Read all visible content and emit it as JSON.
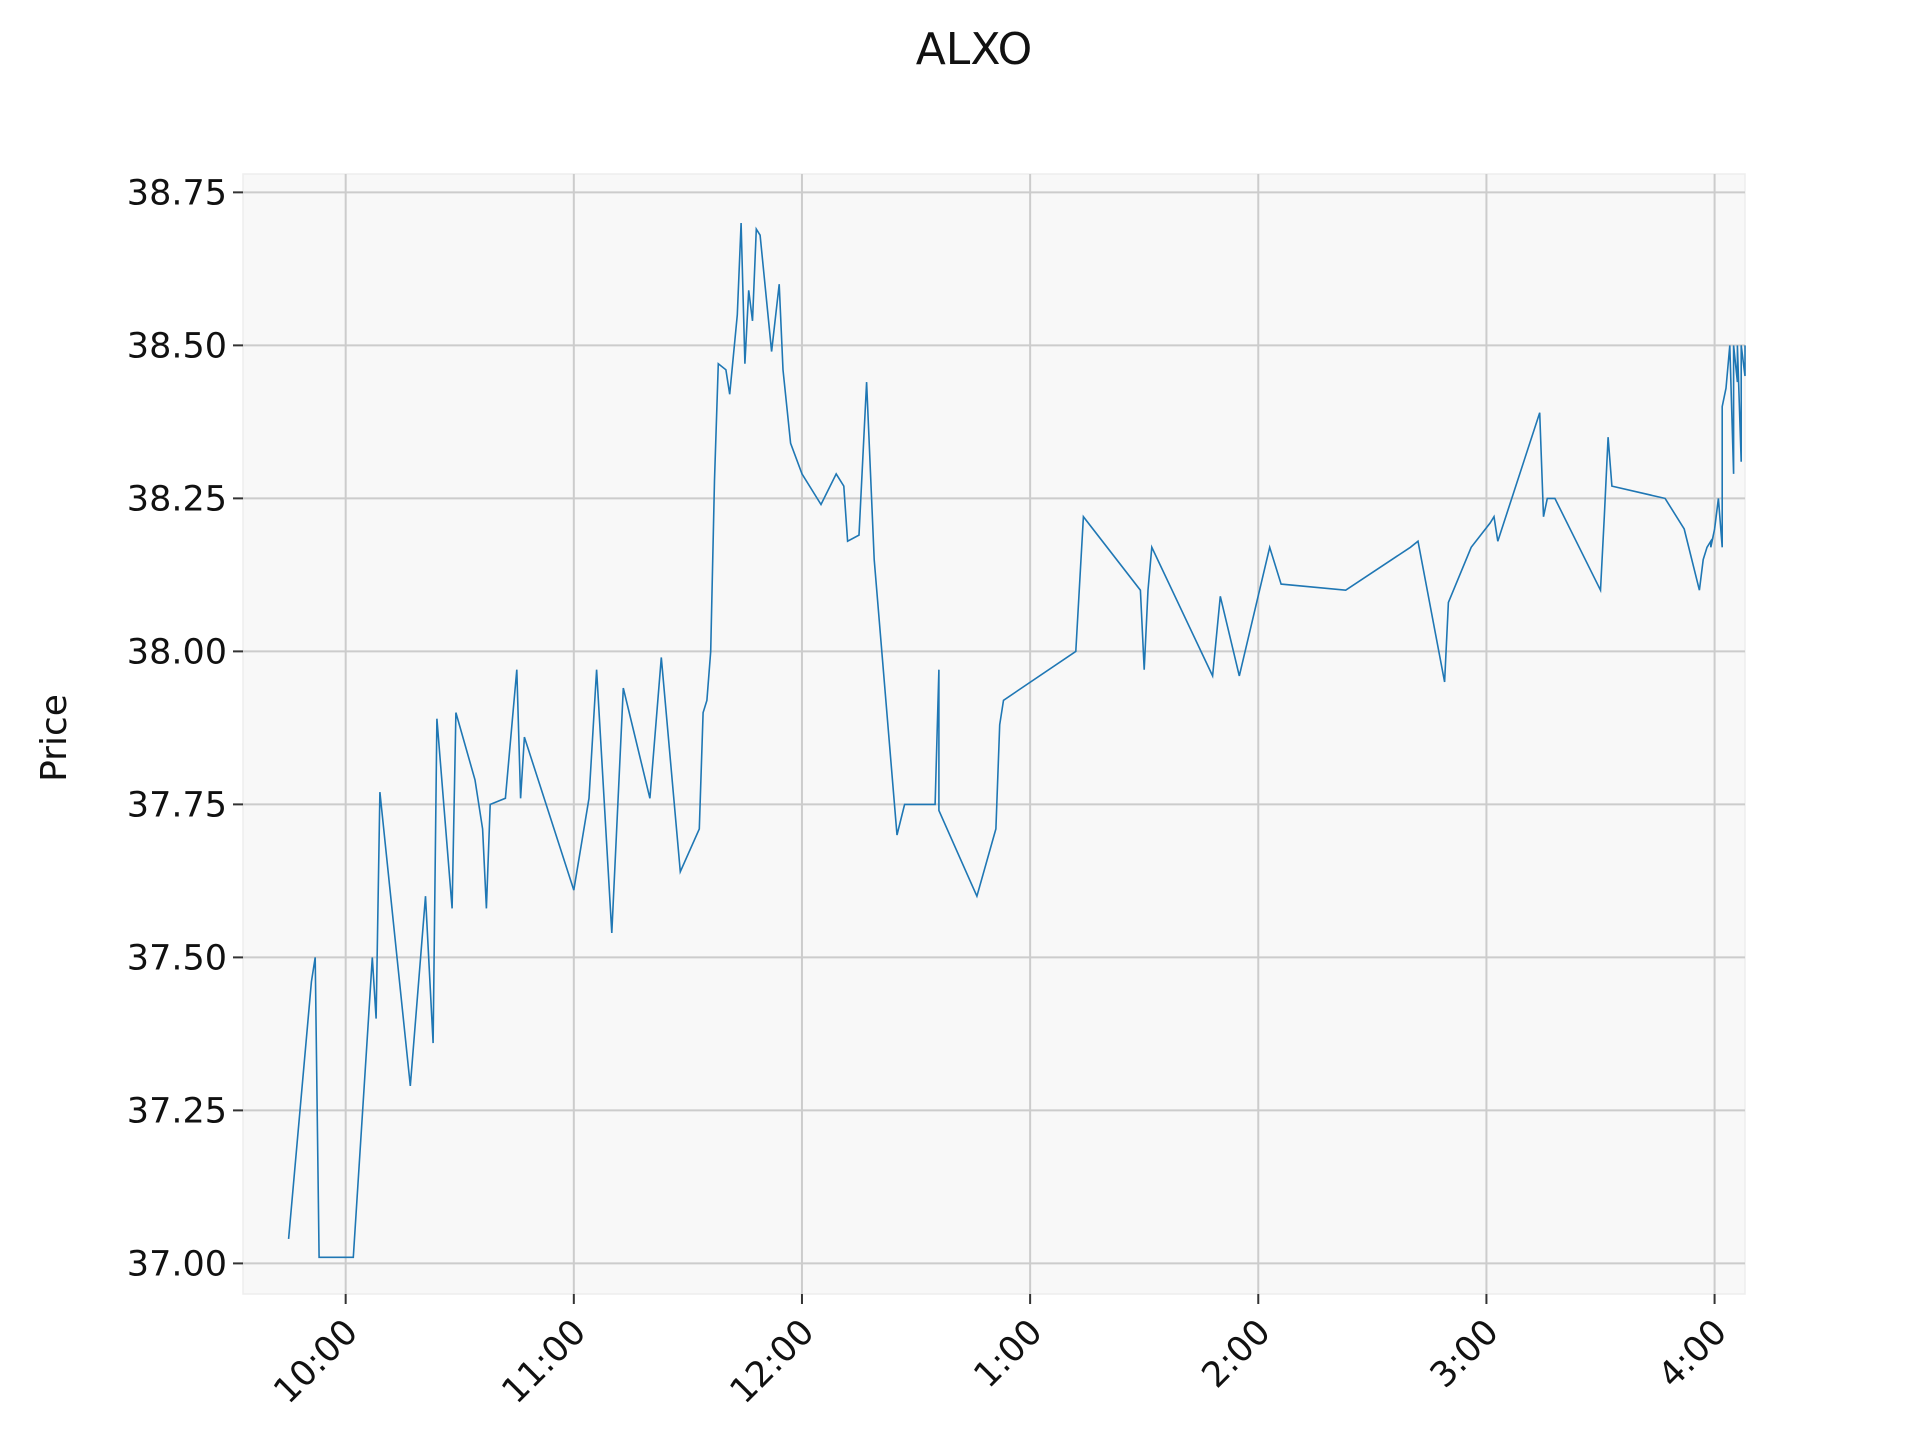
{
  "chart_data": {
    "type": "line",
    "title": "ALXO",
    "ylabel": "Price",
    "xlabel": "",
    "ylim": [
      36.95,
      38.78
    ],
    "xlim": [
      "09:33",
      "16:08"
    ],
    "grid": true,
    "legend": "none",
    "colors": {
      "line": "#1f77b4",
      "plot_background": "#f8f8f8",
      "grid": "#cccccc"
    },
    "y_ticks": [
      {
        "value": 37.0,
        "label": "37.00"
      },
      {
        "value": 37.25,
        "label": "37.25"
      },
      {
        "value": 37.5,
        "label": "37.50"
      },
      {
        "value": 37.75,
        "label": "37.75"
      },
      {
        "value": 38.0,
        "label": "38.00"
      },
      {
        "value": 38.25,
        "label": "38.25"
      },
      {
        "value": 38.5,
        "label": "38.50"
      },
      {
        "value": 38.75,
        "label": "38.75"
      }
    ],
    "x_ticks": [
      {
        "value": "10:00",
        "label": "10:00"
      },
      {
        "value": "11:00",
        "label": "11:00"
      },
      {
        "value": "12:00",
        "label": "12:00"
      },
      {
        "value": "13:00",
        "label": "1:00"
      },
      {
        "value": "14:00",
        "label": "2:00"
      },
      {
        "value": "15:00",
        "label": "3:00"
      },
      {
        "value": "16:00",
        "label": "4:00"
      }
    ],
    "series": [
      {
        "points": [
          [
            "09:45",
            37.04
          ],
          [
            "09:51",
            37.46
          ],
          [
            "09:52",
            37.5
          ],
          [
            "09:53",
            37.01
          ],
          [
            "10:02",
            37.01
          ],
          [
            "10:06",
            37.4
          ],
          [
            "10:07",
            37.5
          ],
          [
            "10:08",
            37.4
          ],
          [
            "10:09",
            37.77
          ],
          [
            "10:17",
            37.29
          ],
          [
            "10:21",
            37.6
          ],
          [
            "10:23",
            37.36
          ],
          [
            "10:24",
            37.89
          ],
          [
            "10:28",
            37.58
          ],
          [
            "10:29",
            37.9
          ],
          [
            "10:34",
            37.79
          ],
          [
            "10:36",
            37.71
          ],
          [
            "10:37",
            37.58
          ],
          [
            "10:38",
            37.75
          ],
          [
            "10:42",
            37.76
          ],
          [
            "10:45",
            37.97
          ],
          [
            "10:46",
            37.76
          ],
          [
            "10:47",
            37.86
          ],
          [
            "11:00",
            37.61
          ],
          [
            "11:04",
            37.76
          ],
          [
            "11:06",
            37.97
          ],
          [
            "11:10",
            37.54
          ],
          [
            "11:13",
            37.94
          ],
          [
            "11:20",
            37.76
          ],
          [
            "11:23",
            37.99
          ],
          [
            "11:28",
            37.64
          ],
          [
            "11:33",
            37.71
          ],
          [
            "11:34",
            37.9
          ],
          [
            "11:35",
            37.92
          ],
          [
            "11:36",
            38.0
          ],
          [
            "11:37",
            38.28
          ],
          [
            "11:38",
            38.47
          ],
          [
            "11:40",
            38.46
          ],
          [
            "11:41",
            38.42
          ],
          [
            "11:43",
            38.55
          ],
          [
            "11:44",
            38.7
          ],
          [
            "11:45",
            38.47
          ],
          [
            "11:46",
            38.59
          ],
          [
            "11:47",
            38.54
          ],
          [
            "11:48",
            38.69
          ],
          [
            "11:49",
            38.68
          ],
          [
            "11:52",
            38.49
          ],
          [
            "11:54",
            38.6
          ],
          [
            "11:55",
            38.46
          ],
          [
            "11:56",
            38.4
          ],
          [
            "11:57",
            38.34
          ],
          [
            "12:00",
            38.29
          ],
          [
            "12:05",
            38.24
          ],
          [
            "12:09",
            38.29
          ],
          [
            "12:11",
            38.27
          ],
          [
            "12:12",
            38.18
          ],
          [
            "12:15",
            38.19
          ],
          [
            "12:17",
            38.44
          ],
          [
            "12:19",
            38.15
          ],
          [
            "12:25",
            37.7
          ],
          [
            "12:27",
            37.75
          ],
          [
            "12:35",
            37.75
          ],
          [
            "12:36",
            37.97
          ],
          [
            "12:36",
            37.74
          ],
          [
            "12:46",
            37.6
          ],
          [
            "12:51",
            37.71
          ],
          [
            "12:52",
            37.88
          ],
          [
            "12:53",
            37.92
          ],
          [
            "13:12",
            38.0
          ],
          [
            "13:14",
            38.22
          ],
          [
            "13:29",
            38.1
          ],
          [
            "13:30",
            37.97
          ],
          [
            "13:31",
            38.1
          ],
          [
            "13:32",
            38.17
          ],
          [
            "13:48",
            37.96
          ],
          [
            "13:50",
            38.09
          ],
          [
            "13:55",
            37.96
          ],
          [
            "14:03",
            38.17
          ],
          [
            "14:06",
            38.11
          ],
          [
            "14:23",
            38.1
          ],
          [
            "14:40",
            38.17
          ],
          [
            "14:42",
            38.18
          ],
          [
            "14:49",
            37.95
          ],
          [
            "14:50",
            38.08
          ],
          [
            "14:56",
            38.17
          ],
          [
            "15:01",
            38.21
          ],
          [
            "15:02",
            38.22
          ],
          [
            "15:03",
            38.18
          ],
          [
            "15:14",
            38.39
          ],
          [
            "15:15",
            38.22
          ],
          [
            "15:16",
            38.25
          ],
          [
            "15:18",
            38.25
          ],
          [
            "15:30",
            38.1
          ],
          [
            "15:31",
            38.22
          ],
          [
            "15:32",
            38.35
          ],
          [
            "15:33",
            38.27
          ],
          [
            "15:47",
            38.25
          ],
          [
            "15:52",
            38.2
          ],
          [
            "15:56",
            38.1
          ],
          [
            "15:57",
            38.15
          ],
          [
            "15:58",
            38.17
          ],
          [
            "15:59",
            38.18
          ],
          [
            "15:59",
            38.17
          ],
          [
            "16:00",
            38.2
          ],
          [
            "16:01",
            38.25
          ],
          [
            "16:02",
            38.17
          ],
          [
            "16:02",
            38.4
          ],
          [
            "16:03",
            38.43
          ],
          [
            "16:04",
            38.5
          ],
          [
            "16:05",
            38.29
          ],
          [
            "16:05",
            38.5
          ],
          [
            "16:06",
            38.44
          ],
          [
            "16:06",
            38.5
          ],
          [
            "16:07",
            38.31
          ],
          [
            "16:07",
            38.5
          ],
          [
            "16:08",
            38.45
          ],
          [
            "16:08",
            38.5
          ]
        ]
      }
    ]
  }
}
